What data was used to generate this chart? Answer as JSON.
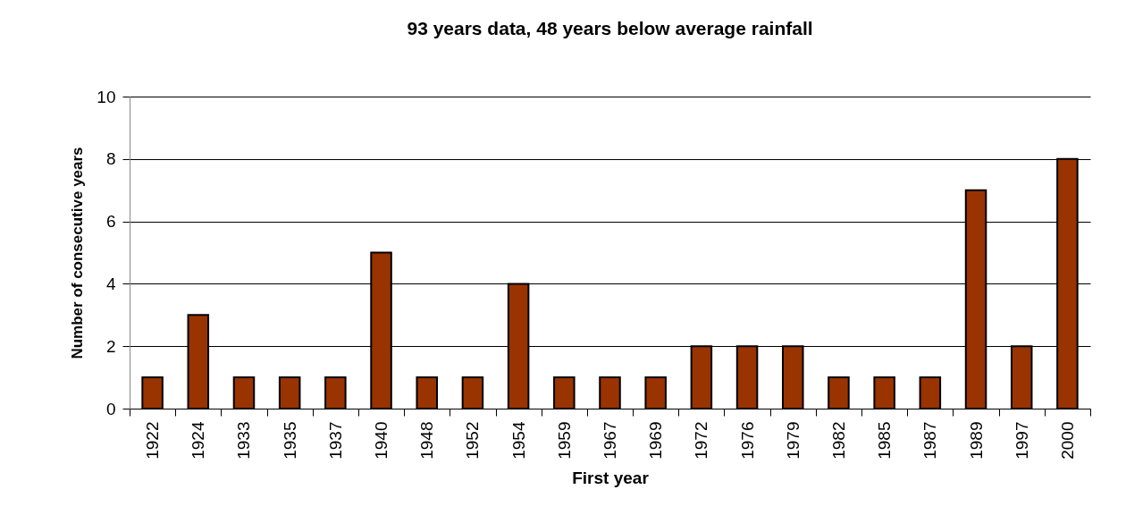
{
  "chart_data": {
    "type": "bar",
    "title": "93 years data, 48 years below average rainfall",
    "xlabel": "First year",
    "ylabel": "Number of consecutive years",
    "categories": [
      "1922",
      "1924",
      "1933",
      "1935",
      "1937",
      "1940",
      "1948",
      "1952",
      "1954",
      "1959",
      "1967",
      "1969",
      "1972",
      "1976",
      "1979",
      "1982",
      "1985",
      "1987",
      "1989",
      "1997",
      "2000"
    ],
    "values": [
      1,
      3,
      1,
      1,
      1,
      5,
      1,
      1,
      4,
      1,
      1,
      1,
      2,
      2,
      2,
      1,
      1,
      1,
      7,
      2,
      8
    ],
    "color": "#993300",
    "ylim": [
      0,
      10
    ],
    "yticks": [
      0,
      2,
      4,
      6,
      8,
      10
    ],
    "grid": "y"
  }
}
